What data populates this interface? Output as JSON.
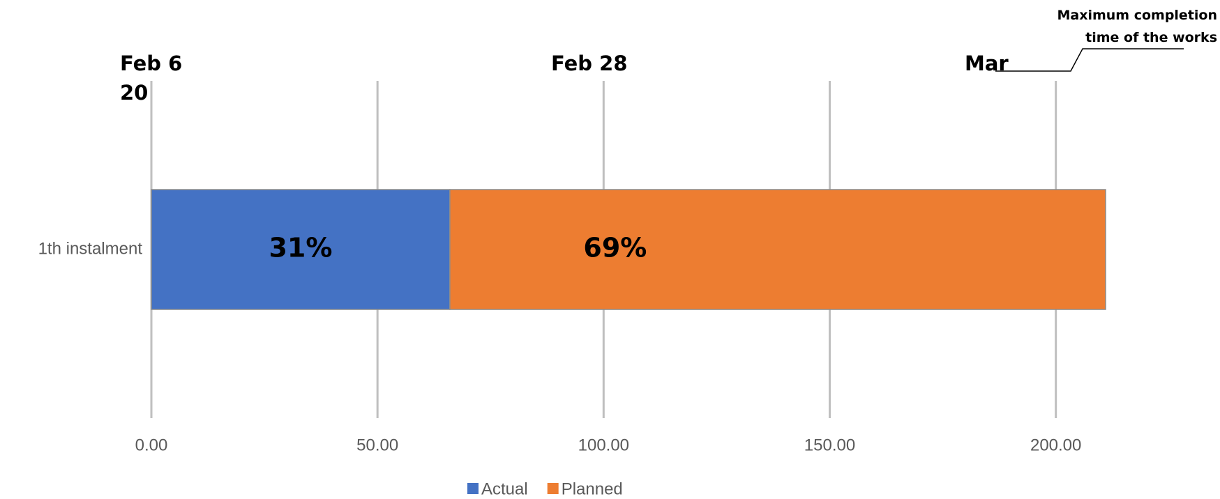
{
  "chart_data": {
    "type": "stacked-bar-horizontal",
    "categories": [
      "1th instalment"
    ],
    "series": [
      {
        "name": "Actual",
        "color": "#4472c4",
        "values": [
          66
        ]
      },
      {
        "name": "Planned",
        "color": "#ed7d31",
        "values": [
          145
        ]
      }
    ],
    "segment_labels": [
      "31%",
      "69%"
    ],
    "xlim": [
      0,
      211
    ],
    "xticks": [
      {
        "value": 0,
        "label": "0.00"
      },
      {
        "value": 50,
        "label": "50.00"
      },
      {
        "value": 100,
        "label": "100.00"
      },
      {
        "value": 150,
        "label": "150.00"
      },
      {
        "value": 200,
        "label": "200.00"
      }
    ],
    "grid": true,
    "legend": "bottom",
    "date_labels": [
      "Feb 6 20",
      "Feb 28",
      "Mar"
    ],
    "note": "Maximum completion time of the works"
  }
}
